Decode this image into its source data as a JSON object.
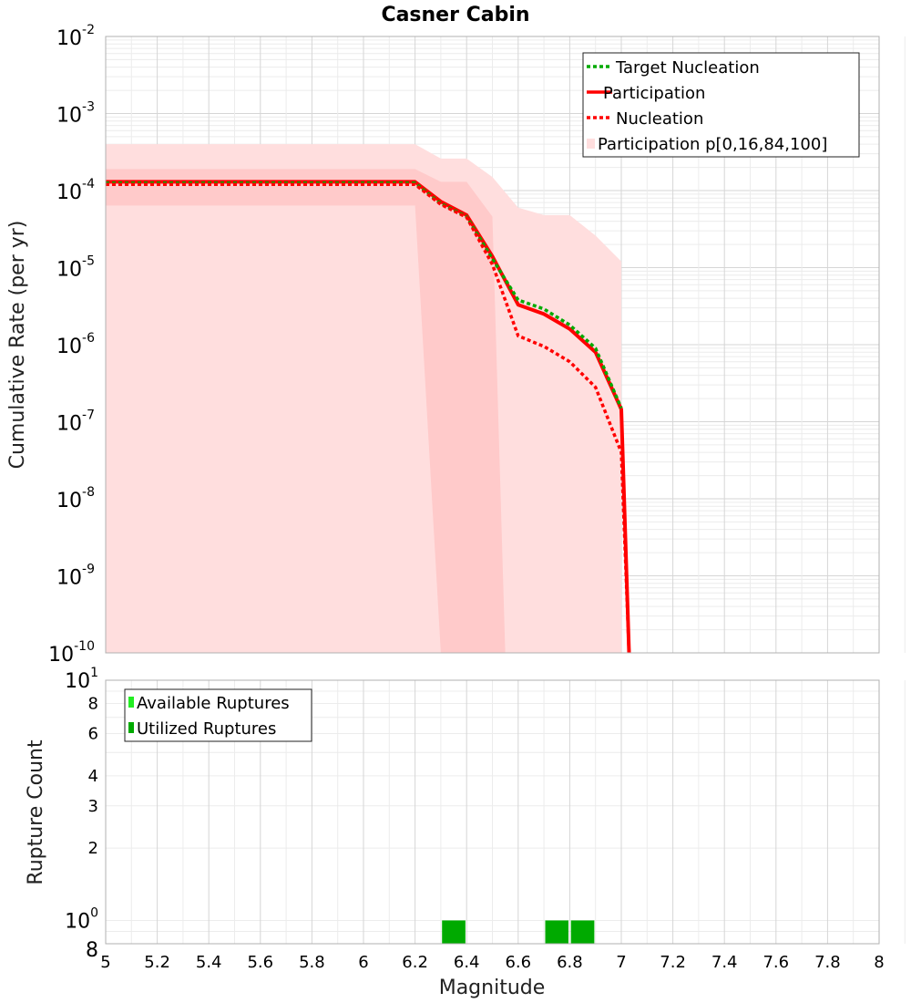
{
  "chart_data": [
    {
      "type": "line",
      "title": "Casner Cabin",
      "xlabel": "",
      "ylabel": "Cumulative Rate (per yr)",
      "xlim": [
        5,
        8
      ],
      "ylim": [
        1e-10,
        0.01
      ],
      "yscale": "log",
      "grid": true,
      "legend_position": "top-right",
      "x_ticks": [
        "5",
        "5.2",
        "5.4",
        "5.6",
        "5.8",
        "6",
        "6.2",
        "6.4",
        "6.6",
        "6.8",
        "7",
        "7.2",
        "7.4",
        "7.6",
        "7.8",
        "8"
      ],
      "y_ticks": [
        {
          "value": 0.01,
          "base": "10",
          "exp": "-2"
        },
        {
          "value": 0.001,
          "base": "10",
          "exp": "-3"
        },
        {
          "value": 0.0001,
          "base": "10",
          "exp": "-4"
        },
        {
          "value": 1e-05,
          "base": "10",
          "exp": "-5"
        },
        {
          "value": 1e-06,
          "base": "10",
          "exp": "-6"
        },
        {
          "value": 1e-07,
          "base": "10",
          "exp": "-7"
        },
        {
          "value": 1e-08,
          "base": "10",
          "exp": "-8"
        },
        {
          "value": 1e-09,
          "base": "10",
          "exp": "-9"
        },
        {
          "value": 1e-10,
          "base": "10",
          "exp": "-10"
        }
      ],
      "series": [
        {
          "name": "Target Nucleation",
          "color": "#00aa00",
          "style": "dotted",
          "x": [
            5.0,
            6.2,
            6.3,
            6.4,
            6.5,
            6.6,
            6.7,
            6.8,
            6.9,
            7.0
          ],
          "y": [
            0.000125,
            0.000125,
            6.8e-05,
            4.6e-05,
            1.3e-05,
            3.8e-06,
            2.9e-06,
            1.8e-06,
            9e-07,
            1.5e-07
          ]
        },
        {
          "name": "Participation",
          "color": "#ff0000",
          "style": "solid",
          "x": [
            5.0,
            6.2,
            6.3,
            6.4,
            6.5,
            6.6,
            6.7,
            6.8,
            6.9,
            7.0,
            7.03
          ],
          "y": [
            0.00013,
            0.00013,
            7.2e-05,
            4.8e-05,
            1.4e-05,
            3.3e-06,
            2.5e-06,
            1.6e-06,
            8e-07,
            1.45e-07,
            1e-10
          ]
        },
        {
          "name": "Nucleation",
          "color": "#ff0000",
          "style": "dotted",
          "x": [
            5.0,
            6.2,
            6.3,
            6.4,
            6.5,
            6.6,
            6.7,
            6.8,
            6.9,
            7.0,
            7.03
          ],
          "y": [
            0.00012,
            0.00012,
            6.6e-05,
            4.5e-05,
            1.1e-05,
            1.3e-06,
            9.5e-07,
            6e-07,
            2.8e-07,
            4e-08,
            1e-10
          ]
        }
      ],
      "bands": [
        {
          "name": "Participation p[0,16,84,100]",
          "color": "#ffdede",
          "legend": true,
          "x": [
            5.0,
            6.2,
            6.3,
            6.4,
            6.5,
            6.6,
            6.7,
            6.8,
            6.9,
            7.0
          ],
          "upper": [
            0.0004,
            0.0004,
            0.00026,
            0.00026,
            0.00015,
            6e-05,
            4.8e-05,
            4.8e-05,
            2.6e-05,
            1.2e-05
          ],
          "lower": [
            1e-10,
            1e-10,
            1e-10,
            1e-10,
            1e-10,
            1e-10,
            1e-10,
            1e-10,
            1e-10,
            1e-10
          ]
        },
        {
          "name": "",
          "color": "#ffcaca",
          "legend": false,
          "x": [
            5.0,
            6.2,
            6.3,
            6.4,
            6.5,
            6.55
          ],
          "upper": [
            0.00019,
            0.00019,
            0.00013,
            0.00013,
            4.6e-05,
            1e-10
          ],
          "lower": [
            6.4e-05,
            6.4e-05,
            1e-10,
            1e-10,
            1e-10,
            1e-10
          ]
        }
      ]
    },
    {
      "type": "bar",
      "title": "",
      "xlabel": "Magnitude",
      "ylabel": "Rupture Count",
      "xlim": [
        5,
        8
      ],
      "ylim": [
        0.8,
        10
      ],
      "yscale": "log",
      "grid": true,
      "legend_position": "top-left",
      "x_ticks": [
        "5",
        "5.2",
        "5.4",
        "5.6",
        "5.8",
        "6",
        "6.2",
        "6.4",
        "6.6",
        "6.8",
        "7",
        "7.2",
        "7.4",
        "7.6",
        "7.8",
        "8"
      ],
      "y_ticks": [
        {
          "value": 10,
          "base": "10",
          "exp": "1"
        },
        {
          "value": 8,
          "base": "8",
          "exp": ""
        },
        {
          "value": 6,
          "base": "6",
          "exp": ""
        },
        {
          "value": 4,
          "base": "4",
          "exp": ""
        },
        {
          "value": 3,
          "base": "3",
          "exp": ""
        },
        {
          "value": 2,
          "base": "2",
          "exp": ""
        },
        {
          "value": 1,
          "base": "10",
          "exp": "0"
        },
        {
          "value": 0.8,
          "base": "8",
          "exp": ""
        }
      ],
      "series": [
        {
          "name": "Available Ruptures",
          "color": "#22ee22",
          "x": [
            6.35,
            6.75,
            6.85
          ],
          "values": [
            1,
            1,
            1
          ]
        },
        {
          "name": "Utilized Ruptures",
          "color": "#00aa00",
          "x": [
            6.35,
            6.75,
            6.85
          ],
          "values": [
            1,
            1,
            1
          ]
        }
      ]
    }
  ]
}
